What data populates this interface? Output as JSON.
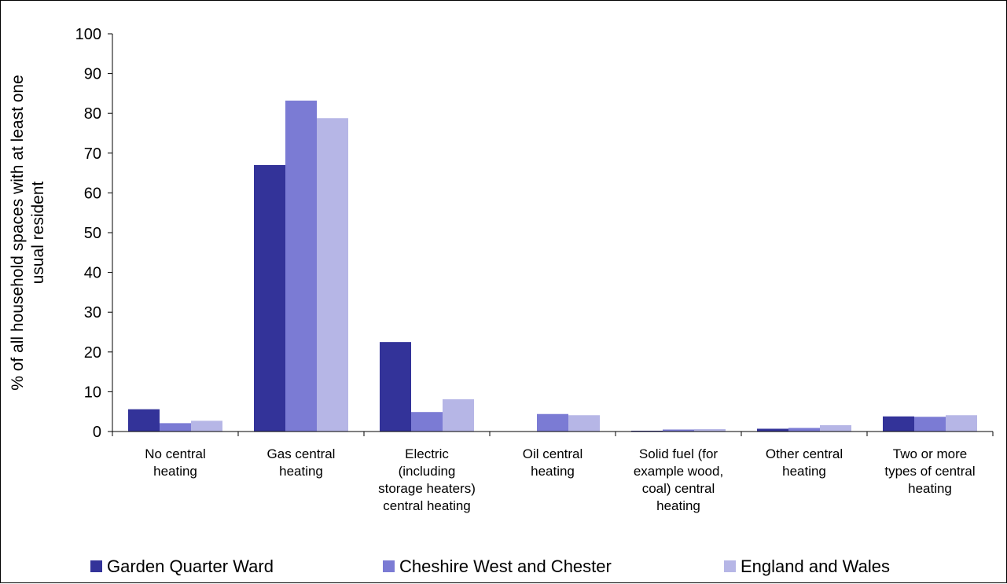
{
  "chart_data": {
    "type": "bar",
    "ylabel": [
      "% of all household spaces with at least one",
      "usual resident"
    ],
    "ylim": [
      0,
      100
    ],
    "yticks": [
      "0",
      "10",
      "20",
      "30",
      "40",
      "50",
      "60",
      "70",
      "80",
      "90",
      "100"
    ],
    "grid": false,
    "legend_position": "bottom",
    "categories": [
      [
        "No central",
        "heating"
      ],
      [
        "Gas central",
        "heating"
      ],
      [
        "Electric",
        "(including",
        "storage heaters)",
        "central heating"
      ],
      [
        "Oil central",
        "heating"
      ],
      [
        "Solid fuel (for",
        "example wood,",
        "coal) central",
        "heating"
      ],
      [
        "Other central",
        "heating"
      ],
      [
        "Two or more",
        "types of central",
        "heating"
      ]
    ],
    "series": [
      {
        "name": "Garden Quarter Ward",
        "color": "#333399",
        "values": [
          5.6,
          67.0,
          22.5,
          0.0,
          0.2,
          0.7,
          3.8
        ]
      },
      {
        "name": "Cheshire West and Chester",
        "color": "#7b7bd4",
        "values": [
          2.1,
          83.2,
          4.9,
          4.4,
          0.5,
          0.9,
          3.7
        ]
      },
      {
        "name": "England and Wales",
        "color": "#b6b6e6",
        "values": [
          2.7,
          78.8,
          8.1,
          4.1,
          0.6,
          1.6,
          4.1
        ]
      }
    ]
  }
}
